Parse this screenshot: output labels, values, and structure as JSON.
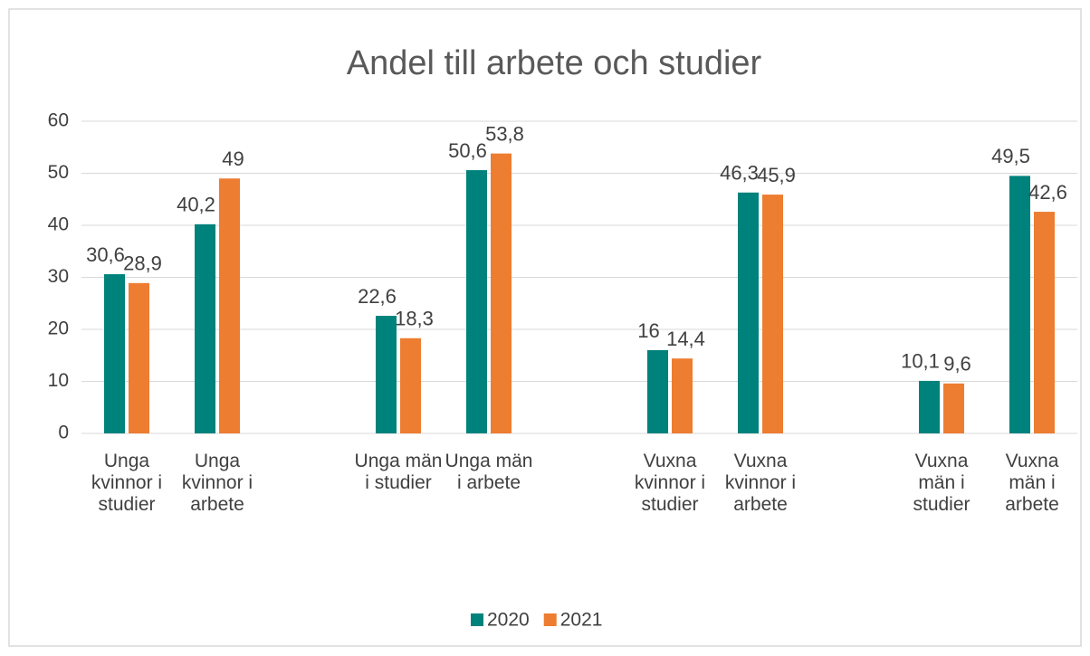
{
  "chart_data": {
    "type": "bar",
    "title": "Andel till arbete och studier",
    "categories": [
      "Unga kvinnor i studier",
      "Unga kvinnor i arbete",
      null,
      "Unga män i studier",
      "Unga män i arbete",
      null,
      "Vuxna kvinnor i studier",
      "Vuxna kvinnor i arbete",
      null,
      "Vuxna män i studier",
      "Vuxna män i arbete"
    ],
    "series": [
      {
        "name": "2020",
        "color": "#00827c",
        "values": [
          30.6,
          40.2,
          null,
          22.6,
          50.6,
          null,
          16,
          46.3,
          null,
          10.1,
          49.5
        ],
        "value_labels": [
          "30,6",
          "40,2",
          null,
          "22,6",
          "50,6",
          null,
          "16",
          "46,3",
          null,
          "10,1",
          "49,5"
        ]
      },
      {
        "name": "2021",
        "color": "#ed7d31",
        "values": [
          28.9,
          49,
          null,
          18.3,
          53.8,
          null,
          14.4,
          45.9,
          null,
          9.6,
          42.6
        ],
        "value_labels": [
          "28,9",
          "49",
          null,
          "18,3",
          "53,8",
          null,
          "14,4",
          "45,9",
          null,
          "9,6",
          "42,6"
        ]
      }
    ],
    "ylim": [
      0,
      60
    ],
    "yticks": [
      0,
      10,
      20,
      30,
      40,
      50,
      60
    ],
    "grid": true,
    "legend": "bottom"
  }
}
